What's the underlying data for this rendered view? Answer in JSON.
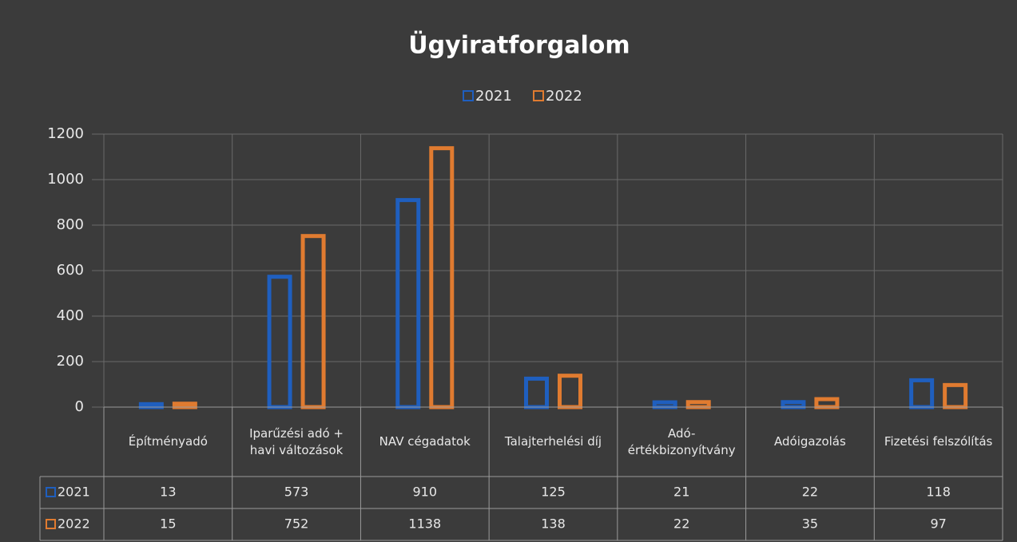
{
  "chart_data": {
    "type": "bar",
    "title": "Ügyiratforgalom",
    "categories": [
      "Építményadó",
      "Iparűzési adó + havi változások",
      "NAV cégadatok",
      "Talajterhelési díj",
      "Adó-értékbizonyítvány",
      "Adóigazolás",
      "Fizetési felszólítás"
    ],
    "series": [
      {
        "name": "2021",
        "color": "#1f5fbf",
        "values": [
          13,
          573,
          910,
          125,
          21,
          22,
          118
        ]
      },
      {
        "name": "2022",
        "color": "#e07b30",
        "values": [
          15,
          752,
          1138,
          138,
          22,
          35,
          97
        ]
      }
    ],
    "ylim": [
      0,
      1200
    ],
    "yticks": [
      0,
      200,
      400,
      600,
      800,
      1000,
      1200
    ],
    "grid": true,
    "data_table": true
  }
}
